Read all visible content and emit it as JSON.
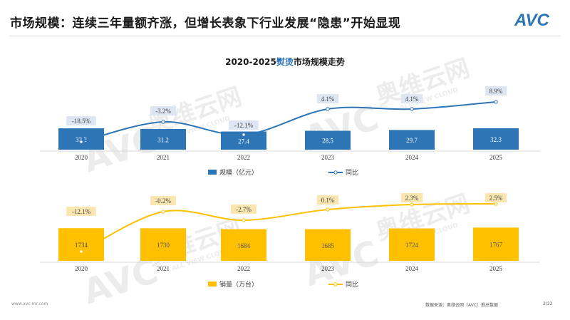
{
  "header": {
    "title": "市场规模：连续三年量额齐涨，但增长表象下行业发展“隐患”开始显现",
    "logo_text": "AVC"
  },
  "chart_title": {
    "prefix": "2020-2025",
    "highlight": "熨烫",
    "suffix": "市场规模走势"
  },
  "watermark": {
    "brand_cn": "奥维云网",
    "brand_en": "ALL VIEW CLOUD",
    "brand_logo": "AVC"
  },
  "colors": {
    "blue": "#2e75b6",
    "gold": "#ffc000",
    "blue_label_bg": "#dde6f2",
    "gold_label_bg": "#fbe6b0"
  },
  "chart_data": [
    {
      "type": "bar",
      "categories": [
        "2020",
        "2021",
        "2022",
        "2023",
        "2024",
        "2025"
      ],
      "series": [
        {
          "name": "规模（亿元）",
          "kind": "bar",
          "values": [
            32.2,
            31.2,
            27.4,
            28.5,
            29.7,
            32.3
          ],
          "labels": [
            "32.2",
            "31.2",
            "27.4",
            "28.5",
            "29.7",
            "32.3"
          ]
        },
        {
          "name": "同比",
          "kind": "line",
          "values": [
            -18.5,
            -3.2,
            -12.1,
            4.1,
            4.1,
            8.9
          ],
          "labels": [
            "-18.5%",
            "-3.2%",
            "-12.1%",
            "4.1%",
            "4.1%",
            "8.9%"
          ]
        }
      ]
    },
    {
      "type": "bar",
      "categories": [
        "2020",
        "2021",
        "2022",
        "2023",
        "2024",
        "2025"
      ],
      "series": [
        {
          "name": "销量（万台）",
          "kind": "bar",
          "values": [
            1734,
            1730,
            1684,
            1685,
            1724,
            1767
          ],
          "labels": [
            "1734",
            "1730",
            "1684",
            "1685",
            "1724",
            "1767"
          ]
        },
        {
          "name": "同比",
          "kind": "line",
          "values": [
            -12.1,
            -0.2,
            -2.7,
            0.1,
            2.3,
            2.5
          ],
          "labels": [
            "-12.1%",
            "-0.2%",
            "-2.7%",
            "0.1%",
            "2.3%",
            "2.5%"
          ]
        }
      ]
    }
  ],
  "footer": {
    "website": "www.avc-mr.com",
    "source": "数据来源：奥维云网（AVC）推总数据",
    "page": "2/22"
  }
}
